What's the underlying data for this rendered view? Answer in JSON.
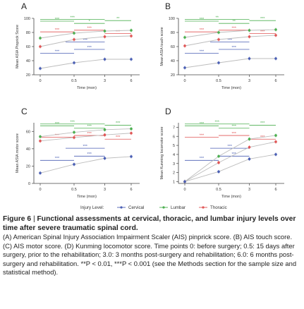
{
  "legend_label": "Injury Level:",
  "colors": {
    "cervical": "#4a5fb4",
    "lumbar": "#4caf50",
    "thoracic": "#e05555",
    "axis": "#444444",
    "grey": "#bdbdbd"
  },
  "chart_data": [
    {
      "type": "line",
      "panel": "A",
      "ylabel": "Mean ASIA Pinprick Score",
      "xlabel": "Time (mon)",
      "x": [
        0,
        0.5,
        3,
        6
      ],
      "xticks": [
        "0",
        "0.5",
        "3",
        "6"
      ],
      "ylim": [
        20,
        100
      ],
      "yticks": [
        20,
        40,
        60,
        80,
        100
      ],
      "series": [
        {
          "name": "Lumbar",
          "values": [
            72,
            79,
            82,
            83
          ]
        },
        {
          "name": "Thoracic",
          "values": [
            60,
            70,
            74,
            75
          ]
        },
        {
          "name": "Cervical",
          "values": [
            29,
            37,
            42,
            42
          ]
        }
      ],
      "annotations": [
        "***",
        "*",
        "***",
        "**",
        "***",
        "***",
        "***",
        "***",
        "***",
        "***"
      ]
    },
    {
      "type": "line",
      "panel": "B",
      "ylabel": "Mean ASIA touch score",
      "xlabel": "Time (mon)",
      "x": [
        0,
        0.5,
        3,
        6
      ],
      "xticks": [
        "0",
        "0.5",
        "3",
        "6"
      ],
      "ylim": [
        20,
        100
      ],
      "yticks": [
        20,
        40,
        60,
        80,
        100
      ],
      "series": [
        {
          "name": "Lumbar",
          "values": [
            73,
            80,
            83,
            84
          ]
        },
        {
          "name": "Thoracic",
          "values": [
            61,
            70,
            74,
            76
          ]
        },
        {
          "name": "Cervical",
          "values": [
            30,
            37,
            43,
            43
          ]
        }
      ],
      "annotations": [
        "***",
        "**",
        "**",
        "***",
        "***",
        "***",
        "***",
        "***",
        "***",
        "***"
      ]
    },
    {
      "type": "line",
      "panel": "C",
      "ylabel": "Mean ASIA motor score",
      "xlabel": "Time (mon)",
      "x": [
        0,
        0.5,
        3,
        6
      ],
      "xticks": [
        "0",
        "0.5",
        "3",
        "6"
      ],
      "ylim": [
        0,
        70
      ],
      "yticks": [
        0,
        20,
        40,
        60
      ],
      "series": [
        {
          "name": "Lumbar",
          "values": [
            54,
            59,
            62,
            63
          ]
        },
        {
          "name": "Thoracic",
          "values": [
            49,
            53,
            56,
            58
          ]
        },
        {
          "name": "Cervical",
          "values": [
            12,
            22,
            29,
            31
          ]
        }
      ],
      "annotations": [
        "***",
        "***",
        "***",
        "***",
        "***",
        "***",
        "***",
        "***",
        "***",
        "***"
      ]
    },
    {
      "type": "line",
      "panel": "D",
      "ylabel": "Mean Kunming locomotor score",
      "xlabel": "Time (mon)",
      "x": [
        0,
        0.5,
        3,
        6
      ],
      "xticks": [
        "0",
        "0.5",
        "3",
        "6"
      ],
      "ylim": [
        0.8,
        7.5
      ],
      "yticks": [
        1,
        2,
        3,
        4,
        5,
        6,
        7
      ],
      "series": [
        {
          "name": "Lumbar",
          "values": [
            1.0,
            3.8,
            5.7,
            6.1
          ]
        },
        {
          "name": "Thoracic",
          "values": [
            1.0,
            3.1,
            4.8,
            5.4
          ]
        },
        {
          "name": "Cervical",
          "values": [
            1.0,
            2.1,
            3.5,
            4.0
          ]
        }
      ],
      "annotations": [
        "***",
        "***",
        "***",
        "***",
        "***",
        "***",
        "***",
        "***",
        "***",
        "***"
      ]
    }
  ],
  "caption": {
    "figure_label": "Figure 6",
    "separator": "|",
    "title": "Functional assessments at cervical, thoracic, and lumbar injury levels over time after severe traumatic spinal cord.",
    "body": "(A) American Spinal Injury Association Impairment Scaler (AIS) pinprick score. (B) AIS touch score. (C) AIS motor score. (D) Kunming locomotor score. Time points 0: before surgery; 0.5: 15 days after surgery, prior to the rehabilitation; 3.0: 3 months post-surgery and rehabilitation; 6.0: 6 months post-surgery and rehabilitation. **P < 0.01, ***P < 0.001 (see the Methods section for the sample size and statistical method)."
  }
}
